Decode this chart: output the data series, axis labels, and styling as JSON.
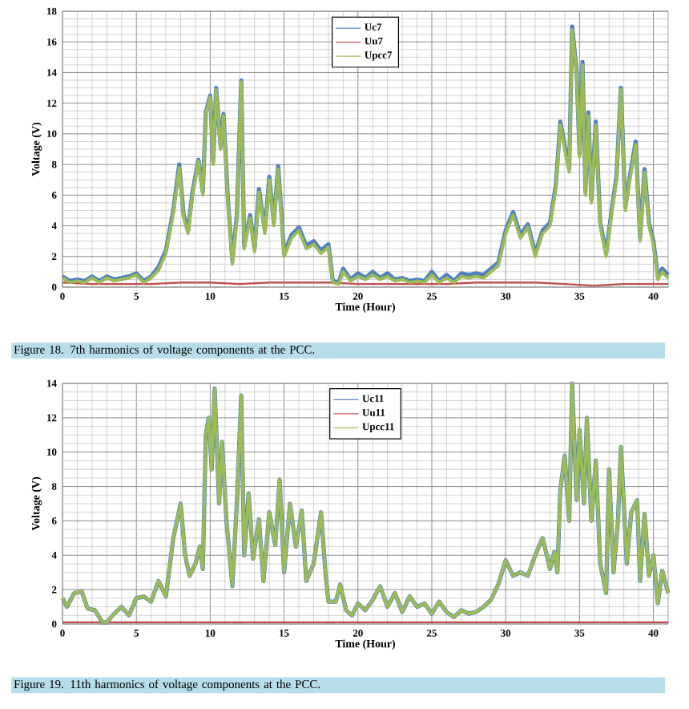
{
  "chart_data": [
    {
      "type": "line",
      "xlabel": "Time (Hour)",
      "ylabel": "Voltage (V)",
      "xlim": [
        0,
        41
      ],
      "ylim": [
        0,
        18
      ],
      "xticks": [
        0,
        5,
        10,
        15,
        20,
        25,
        30,
        35,
        40
      ],
      "yticks": [
        0,
        2,
        4,
        6,
        8,
        10,
        12,
        14,
        16,
        18
      ],
      "grid": true,
      "legend": "top",
      "annotations": [
        "Figure 18. 7th harmonics of voltage components at the PCC."
      ],
      "series": [
        {
          "name": "Uc7",
          "color": "#4f81bd",
          "x": [
            0,
            0.5,
            1,
            1.5,
            2,
            2.5,
            3,
            3.5,
            4,
            4.5,
            5,
            5.5,
            6,
            6.5,
            7,
            7.5,
            7.9,
            8.2,
            8.5,
            8.8,
            9.2,
            9.5,
            9.7,
            10,
            10.2,
            10.4,
            10.7,
            10.9,
            11.2,
            11.5,
            11.8,
            12.1,
            12.3,
            12.7,
            13,
            13.3,
            13.7,
            14,
            14.3,
            14.6,
            15,
            15.5,
            16,
            16.5,
            17,
            17.5,
            18,
            18.3,
            18.7,
            19,
            19.5,
            20,
            20.5,
            21,
            21.5,
            22,
            22.5,
            23,
            23.5,
            24,
            24.5,
            25,
            25.5,
            26,
            26.5,
            27,
            27.5,
            28,
            28.5,
            29,
            29.5,
            30,
            30.5,
            31,
            31.5,
            32,
            32.5,
            33,
            33.4,
            33.7,
            34,
            34.3,
            34.5,
            34.8,
            35,
            35.2,
            35.4,
            35.6,
            35.8,
            36.1,
            36.4,
            36.8,
            37.2,
            37.5,
            37.8,
            38.1,
            38.4,
            38.8,
            39.1,
            39.4,
            39.7,
            40,
            40.3,
            40.6,
            41
          ],
          "values": [
            0.7,
            0.4,
            0.5,
            0.4,
            0.7,
            0.4,
            0.7,
            0.5,
            0.6,
            0.7,
            0.9,
            0.4,
            0.7,
            1.3,
            2.4,
            5,
            8,
            4.7,
            3.7,
            6.2,
            8.3,
            6.2,
            11.4,
            12.5,
            8.2,
            13,
            9.2,
            11.3,
            5.7,
            1.7,
            4.7,
            13.5,
            2.7,
            4.7,
            2.5,
            6.4,
            3.7,
            7.2,
            4.2,
            7.9,
            2.2,
            3.4,
            3.9,
            2.7,
            3,
            2.4,
            2.8,
            0.4,
            0.3,
            1.2,
            0.5,
            0.9,
            0.6,
            1,
            0.6,
            0.9,
            0.5,
            0.6,
            0.4,
            0.5,
            0.4,
            1,
            0.4,
            0.8,
            0.4,
            0.9,
            0.8,
            0.9,
            0.8,
            1.2,
            1.6,
            3.7,
            4.9,
            3.4,
            4.1,
            2.2,
            3.7,
            4.2,
            6.7,
            10.8,
            9.2,
            7.7,
            17,
            14.1,
            8.7,
            14.7,
            6.2,
            11.4,
            5.7,
            10.8,
            4.2,
            2.2,
            5.2,
            7.2,
            13,
            5.2,
            7.2,
            9.5,
            3.2,
            7.7,
            4.2,
            3,
            0.7,
            1.2,
            0.8
          ]
        },
        {
          "name": "Uu7",
          "color": "#c0504d",
          "x": [
            0,
            2,
            4,
            6,
            8,
            10,
            12,
            14,
            16,
            18,
            20,
            22,
            24,
            26,
            28,
            30,
            32,
            34,
            36,
            38,
            40,
            41
          ],
          "values": [
            0.3,
            0.2,
            0.2,
            0.2,
            0.3,
            0.3,
            0.2,
            0.3,
            0.3,
            0.3,
            0.2,
            0.2,
            0.2,
            0.2,
            0.3,
            0.3,
            0.3,
            0.2,
            0.1,
            0.2,
            0.2,
            0.2
          ]
        },
        {
          "name": "Upcc7",
          "color": "#9bbb59",
          "x": [
            0,
            0.5,
            1,
            1.5,
            2,
            2.5,
            3,
            3.5,
            4,
            4.5,
            5,
            5.5,
            6,
            6.5,
            7,
            7.5,
            7.9,
            8.2,
            8.5,
            8.8,
            9.2,
            9.5,
            9.7,
            10,
            10.2,
            10.4,
            10.7,
            10.9,
            11.2,
            11.5,
            11.8,
            12.1,
            12.3,
            12.7,
            13,
            13.3,
            13.7,
            14,
            14.3,
            14.6,
            15,
            15.5,
            16,
            16.5,
            17,
            17.5,
            18,
            18.3,
            18.7,
            19,
            19.5,
            20,
            20.5,
            21,
            21.5,
            22,
            22.5,
            23,
            23.5,
            24,
            24.5,
            25,
            25.5,
            26,
            26.5,
            27,
            27.5,
            28,
            28.5,
            29,
            29.5,
            30,
            30.5,
            31,
            31.5,
            32,
            32.5,
            33,
            33.4,
            33.7,
            34,
            34.3,
            34.5,
            34.8,
            35,
            35.2,
            35.4,
            35.6,
            35.8,
            36.1,
            36.4,
            36.8,
            37.2,
            37.5,
            37.8,
            38.1,
            38.4,
            38.8,
            39.1,
            39.4,
            39.7,
            40,
            40.3,
            40.6,
            41
          ],
          "values": [
            0.6,
            0.3,
            0.4,
            0.3,
            0.6,
            0.3,
            0.6,
            0.4,
            0.5,
            0.6,
            0.8,
            0.3,
            0.6,
            1.1,
            2.2,
            4.8,
            7.8,
            4.5,
            3.5,
            6,
            8.2,
            6,
            11.3,
            12.4,
            8,
            12.9,
            9,
            11.2,
            5.5,
            1.5,
            4.5,
            13.4,
            2.5,
            4.5,
            2.3,
            6.2,
            3.5,
            7,
            4,
            7.7,
            2,
            3.2,
            3.7,
            2.5,
            2.8,
            2.2,
            2.6,
            0.3,
            0.2,
            1,
            0.4,
            0.7,
            0.5,
            0.8,
            0.5,
            0.7,
            0.4,
            0.5,
            0.3,
            0.4,
            0.3,
            0.8,
            0.3,
            0.6,
            0.3,
            0.7,
            0.6,
            0.7,
            0.6,
            1,
            1.4,
            3.5,
            4.7,
            3.2,
            3.9,
            2,
            3.5,
            4,
            6.5,
            10.6,
            9,
            7.5,
            16.8,
            13.9,
            8.5,
            14.5,
            6,
            11.2,
            5.5,
            10.6,
            4,
            2,
            5,
            7,
            12.9,
            5,
            7,
            9.3,
            3,
            7.5,
            4,
            2.8,
            0.5,
            1,
            0.6
          ]
        }
      ]
    },
    {
      "type": "line",
      "xlabel": "Time (Hour)",
      "ylabel": "Voltage (V)",
      "xlim": [
        0,
        41
      ],
      "ylim": [
        0,
        14
      ],
      "xticks": [
        0,
        5,
        10,
        15,
        20,
        25,
        30,
        35,
        40
      ],
      "yticks": [
        0,
        2,
        4,
        6,
        8,
        10,
        12,
        14
      ],
      "grid": true,
      "legend": "top",
      "annotations": [
        "Figure 19. 11th harmonics of voltage components at the PCC."
      ],
      "series": [
        {
          "name": "Uc11",
          "color": "#4f81bd",
          "x": [
            0,
            0.3,
            0.8,
            1.3,
            1.7,
            2.2,
            2.7,
            3,
            3.5,
            4,
            4.5,
            5,
            5.5,
            6,
            6.5,
            7,
            7.5,
            8,
            8.3,
            8.6,
            9,
            9.3,
            9.5,
            9.7,
            9.9,
            10.1,
            10.3,
            10.6,
            10.8,
            11.1,
            11.5,
            11.8,
            12.1,
            12.3,
            12.6,
            12.9,
            13.3,
            13.6,
            14,
            14.4,
            14.7,
            15,
            15.4,
            15.8,
            16.2,
            16.5,
            17,
            17.5,
            17.8,
            18,
            18.5,
            18.8,
            19.2,
            19.6,
            20,
            20.5,
            21,
            21.5,
            22,
            22.5,
            23,
            23.5,
            24,
            24.5,
            25,
            25.5,
            26,
            26.5,
            27,
            27.5,
            28,
            28.5,
            29,
            29.5,
            30,
            30.5,
            31,
            31.5,
            32,
            32.5,
            33,
            33.3,
            33.5,
            33.7,
            34,
            34.3,
            34.5,
            34.8,
            35,
            35.3,
            35.5,
            35.8,
            36.1,
            36.4,
            36.8,
            37,
            37.3,
            37.6,
            37.8,
            38.2,
            38.5,
            38.9,
            39.1,
            39.4,
            39.7,
            40,
            40.3,
            40.6,
            41
          ],
          "values": [
            1.5,
            1,
            1.8,
            1.9,
            0.9,
            0.8,
            0.1,
            0.1,
            0.6,
            1,
            0.5,
            1.5,
            1.6,
            1.3,
            2.5,
            1.6,
            5,
            7,
            4,
            2.8,
            3.5,
            4.5,
            3.2,
            11,
            12,
            9,
            13.7,
            7,
            10.6,
            6,
            2.2,
            7,
            13.3,
            4,
            7.6,
            3.8,
            6.1,
            2.5,
            6.5,
            4.6,
            8.4,
            3,
            7,
            4.5,
            6.6,
            2.5,
            3.5,
            6.5,
            3,
            1.3,
            1.3,
            2.3,
            0.8,
            0.5,
            1.2,
            0.8,
            1.4,
            2.2,
            1,
            1.8,
            0.7,
            1.6,
            1,
            1.2,
            0.6,
            1.3,
            0.7,
            0.4,
            0.8,
            0.6,
            0.7,
            1,
            1.4,
            2.3,
            3.7,
            2.8,
            3,
            2.8,
            4,
            5,
            3.2,
            4.2,
            3,
            7.8,
            9.8,
            6,
            14,
            7.2,
            11.3,
            7,
            12,
            6,
            9.5,
            3.5,
            1.8,
            9,
            3,
            6,
            10.3,
            3.5,
            6.5,
            7.2,
            2.5,
            6.4,
            2.8,
            4,
            1.2,
            3.1,
            1.8
          ]
        },
        {
          "name": "Uu11",
          "color": "#c0504d",
          "x": [
            0,
            10,
            20,
            30,
            41
          ],
          "values": [
            0.1,
            0.1,
            0.1,
            0.1,
            0.1
          ]
        },
        {
          "name": "Upcc11",
          "color": "#9bbb59",
          "x": [
            0,
            0.3,
            0.8,
            1.3,
            1.7,
            2.2,
            2.7,
            3,
            3.5,
            4,
            4.5,
            5,
            5.5,
            6,
            6.5,
            7,
            7.5,
            8,
            8.3,
            8.6,
            9,
            9.3,
            9.5,
            9.7,
            9.9,
            10.1,
            10.3,
            10.6,
            10.8,
            11.1,
            11.5,
            11.8,
            12.1,
            12.3,
            12.6,
            12.9,
            13.3,
            13.6,
            14,
            14.4,
            14.7,
            15,
            15.4,
            15.8,
            16.2,
            16.5,
            17,
            17.5,
            17.8,
            18,
            18.5,
            18.8,
            19.2,
            19.6,
            20,
            20.5,
            21,
            21.5,
            22,
            22.5,
            23,
            23.5,
            24,
            24.5,
            25,
            25.5,
            26,
            26.5,
            27,
            27.5,
            28,
            28.5,
            29,
            29.5,
            30,
            30.5,
            31,
            31.5,
            32,
            32.5,
            33,
            33.3,
            33.5,
            33.7,
            34,
            34.3,
            34.5,
            34.8,
            35,
            35.3,
            35.5,
            35.8,
            36.1,
            36.4,
            36.8,
            37,
            37.3,
            37.6,
            37.8,
            38.2,
            38.5,
            38.9,
            39.1,
            39.4,
            39.7,
            40,
            40.3,
            40.6,
            41
          ],
          "values": [
            1.5,
            1,
            1.8,
            1.9,
            0.9,
            0.8,
            0.1,
            0.1,
            0.6,
            1,
            0.5,
            1.5,
            1.6,
            1.3,
            2.5,
            1.6,
            5,
            7,
            4,
            2.8,
            3.5,
            4.5,
            3.2,
            11,
            12,
            9,
            13.7,
            7,
            10.6,
            6,
            2.2,
            7,
            13.3,
            4,
            7.6,
            3.8,
            6.1,
            2.5,
            6.5,
            4.6,
            8.4,
            3,
            7,
            4.5,
            6.6,
            2.5,
            3.5,
            6.5,
            3,
            1.3,
            1.3,
            2.3,
            0.8,
            0.5,
            1.2,
            0.8,
            1.4,
            2.2,
            1,
            1.8,
            0.7,
            1.6,
            1,
            1.2,
            0.6,
            1.3,
            0.7,
            0.4,
            0.8,
            0.6,
            0.7,
            1,
            1.4,
            2.3,
            3.7,
            2.8,
            3,
            2.8,
            4,
            5,
            3.2,
            4.2,
            3,
            7.8,
            9.8,
            6,
            14,
            7.2,
            11.3,
            7,
            12,
            6,
            9.5,
            3.5,
            1.8,
            9,
            3,
            6,
            10.3,
            3.5,
            6.5,
            7.2,
            2.5,
            6.4,
            2.8,
            4,
            1.2,
            3.1,
            1.8
          ]
        }
      ]
    }
  ]
}
